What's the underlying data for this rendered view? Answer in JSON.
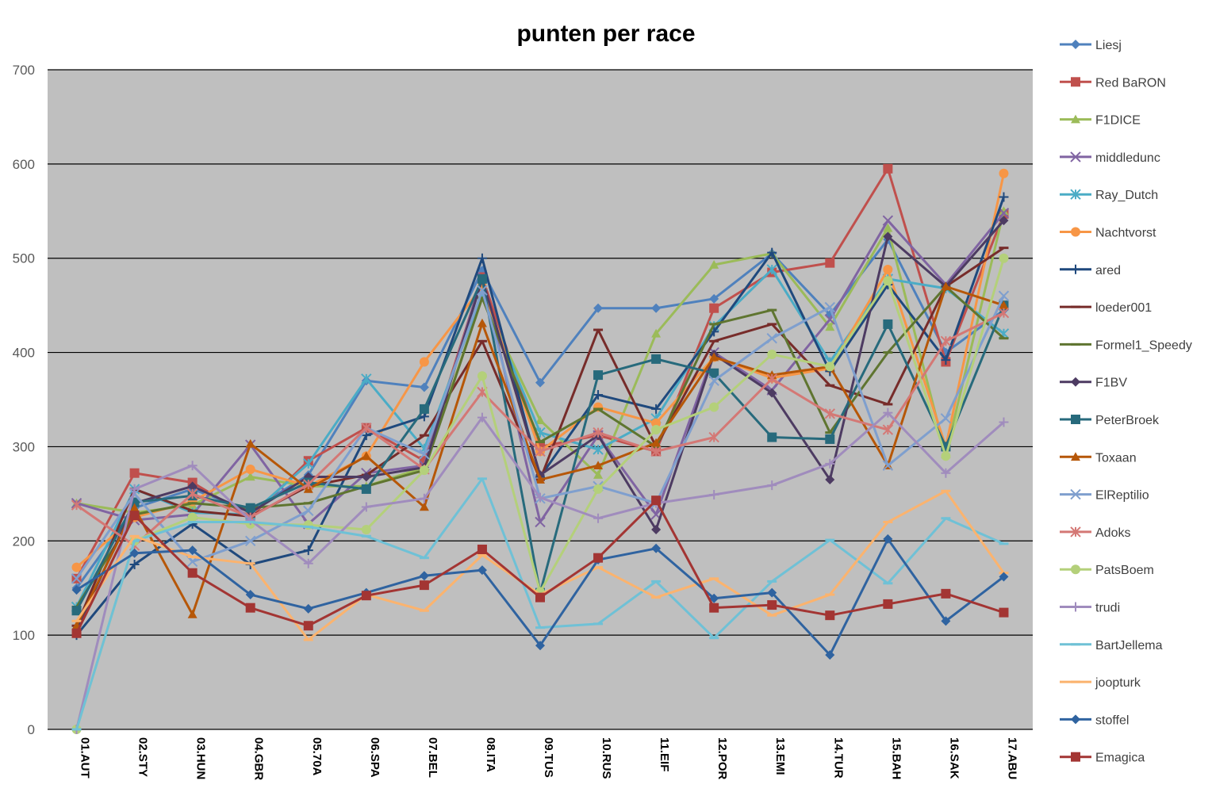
{
  "chart_data": {
    "type": "line",
    "title": "punten per race",
    "xlabel": "",
    "ylabel": "",
    "ylim": [
      0,
      700
    ],
    "yticks": [
      0,
      100,
      200,
      300,
      400,
      500,
      600,
      700
    ],
    "grid": true,
    "legend_position": "right",
    "plot_background": "#bfbfbf",
    "gridline_color": "#000000",
    "categories": [
      "01.AUT",
      "02.STY",
      "03.HUN",
      "04.GBR",
      "05.70A",
      "06.SPA",
      "07.BEL",
      "08.ITA",
      "09.TUS",
      "10.RUS",
      "11.EIF",
      "12.POR",
      "13.EMI",
      "14.TUR",
      "15.BAH",
      "16.SAK",
      "17.ABU"
    ],
    "series": [
      {
        "name": "Liesj",
        "color": "#4f81bd",
        "marker": "diamond",
        "values": [
          150,
          235,
          255,
          232,
          270,
          370,
          363,
          487,
          368,
          447,
          447,
          457,
          505,
          440,
          520,
          400,
          445
        ]
      },
      {
        "name": "Red BaRON",
        "color": "#c0504d",
        "marker": "square",
        "values": [
          160,
          272,
          262,
          225,
          285,
          320,
          285,
          480,
          300,
          312,
          295,
          447,
          485,
          495,
          595,
          390,
          547
        ]
      },
      {
        "name": "F1DICE",
        "color": "#9bbb59",
        "marker": "triangle",
        "values": [
          240,
          230,
          238,
          268,
          258,
          258,
          278,
          458,
          328,
          270,
          420,
          493,
          505,
          427,
          532,
          292,
          550
        ]
      },
      {
        "name": "middledunc",
        "color": "#8064a2",
        "marker": "x",
        "values": [
          240,
          222,
          228,
          302,
          218,
          272,
          280,
          480,
          220,
          312,
          228,
          400,
          360,
          435,
          540,
          472,
          548
        ]
      },
      {
        "name": "Ray_Dutch",
        "color": "#4bacc6",
        "marker": "asterisk",
        "values": [
          130,
          255,
          230,
          228,
          282,
          372,
          298,
          462,
          315,
          297,
          330,
          428,
          488,
          390,
          478,
          468,
          420
        ]
      },
      {
        "name": "Nachtvorst",
        "color": "#f79646",
        "marker": "circle",
        "values": [
          172,
          225,
          242,
          276,
          258,
          290,
          390,
          470,
          295,
          342,
          325,
          395,
          373,
          383,
          488,
          300,
          590
        ]
      },
      {
        "name": "ared",
        "color": "#1f497d",
        "marker": "plus",
        "values": [
          100,
          175,
          218,
          175,
          190,
          312,
          332,
          500,
          268,
          355,
          340,
          422,
          506,
          380,
          472,
          392,
          565
        ]
      },
      {
        "name": "loeder001",
        "color": "#772c2a",
        "marker": "dash",
        "values": [
          110,
          255,
          232,
          226,
          258,
          270,
          312,
          412,
          265,
          424,
          300,
          412,
          430,
          365,
          345,
          470,
          511
        ]
      },
      {
        "name": "Formel1_Speedy",
        "color": "#5f7530",
        "marker": "dash",
        "values": [
          130,
          228,
          240,
          235,
          240,
          258,
          275,
          458,
          305,
          340,
          300,
          430,
          445,
          315,
          400,
          470,
          415
        ]
      },
      {
        "name": "F1BV",
        "color": "#4d3b62",
        "marker": "diamond",
        "values": [
          105,
          240,
          258,
          230,
          268,
          268,
          278,
          478,
          270,
          312,
          212,
          398,
          357,
          265,
          523,
          470,
          540
        ]
      },
      {
        "name": "PeterBroek",
        "color": "#276a7c",
        "marker": "square",
        "values": [
          126,
          241,
          248,
          235,
          262,
          255,
          340,
          478,
          145,
          376,
          393,
          378,
          310,
          308,
          430,
          300,
          450
        ]
      },
      {
        "name": "Toxaan",
        "color": "#b65708",
        "marker": "triangle",
        "values": [
          110,
          235,
          122,
          303,
          255,
          290,
          236,
          431,
          265,
          280,
          304,
          395,
          376,
          385,
          280,
          470,
          450
        ]
      },
      {
        "name": "ElReptilio",
        "color": "#7f9fce",
        "marker": "x",
        "values": [
          160,
          250,
          178,
          200,
          232,
          320,
          292,
          466,
          245,
          258,
          240,
          370,
          415,
          448,
          280,
          330,
          460
        ]
      },
      {
        "name": "Adoks",
        "color": "#d47875",
        "marker": "asterisk",
        "values": [
          238,
          195,
          250,
          225,
          260,
          320,
          276,
          358,
          295,
          315,
          295,
          310,
          372,
          335,
          318,
          412,
          442
        ]
      },
      {
        "name": "PatsBoem",
        "color": "#b4d07a",
        "marker": "circle",
        "values": [
          0,
          200,
          225,
          218,
          217,
          212,
          275,
          375,
          146,
          255,
          318,
          342,
          398,
          385,
          476,
          290,
          500
        ]
      },
      {
        "name": "trudi",
        "color": "#a08cbd",
        "marker": "plus",
        "values": [
          0,
          255,
          280,
          222,
          176,
          236,
          245,
          331,
          246,
          224,
          240,
          249,
          259,
          282,
          336,
          272,
          326
        ]
      },
      {
        "name": "BartJellema",
        "color": "#6fc1d6",
        "marker": "dash",
        "values": [
          0,
          200,
          220,
          220,
          215,
          205,
          182,
          266,
          108,
          112,
          157,
          97,
          157,
          201,
          155,
          224,
          197
        ]
      },
      {
        "name": "joopturk",
        "color": "#fbb36e",
        "marker": "dash",
        "values": [
          115,
          205,
          183,
          176,
          95,
          143,
          126,
          185,
          143,
          172,
          140,
          160,
          121,
          143,
          220,
          253,
          166
        ]
      },
      {
        "name": "stoffel",
        "color": "#2f63a0",
        "marker": "diamond",
        "values": [
          148,
          187,
          190,
          143,
          128,
          145,
          163,
          169,
          89,
          180,
          192,
          139,
          145,
          79,
          202,
          115,
          162
        ]
      },
      {
        "name": "Emagica",
        "color": "#a33533",
        "marker": "square",
        "values": [
          102,
          227,
          166,
          129,
          110,
          142,
          153,
          191,
          140,
          182,
          243,
          129,
          132,
          121,
          133,
          144,
          124
        ]
      }
    ]
  }
}
